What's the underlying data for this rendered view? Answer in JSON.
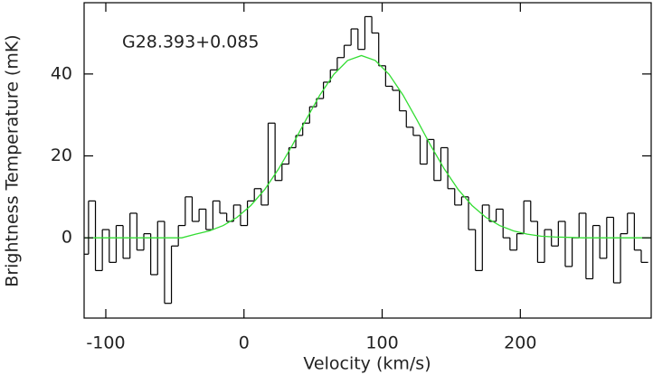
{
  "chart_data": {
    "type": "step",
    "annotation": "G28.393+0.085",
    "x_label": "Velocity (km/s)",
    "y_label": "Brightness Temperature (mK)",
    "xlim": [
      -115.7,
      294.7
    ],
    "ylim": [
      -19.6,
      57.4
    ],
    "xticks": [
      -100,
      0,
      100,
      200
    ],
    "yticks": [
      0,
      20,
      40
    ],
    "series": [
      {
        "color": "#000000",
        "x": [
          -115,
          -110,
          -105,
          -100,
          -95,
          -90,
          -85,
          -80,
          -75,
          -70,
          -65,
          -60,
          -55,
          -50,
          -45,
          -40,
          -35,
          -30,
          -25,
          -20,
          -15,
          -10,
          -5,
          0,
          5,
          10,
          15,
          20,
          25,
          30,
          35,
          40,
          45,
          50,
          55,
          60,
          65,
          70,
          75,
          80,
          85,
          90,
          95,
          100,
          105,
          110,
          115,
          120,
          125,
          130,
          135,
          140,
          145,
          150,
          155,
          160,
          165,
          170,
          175,
          180,
          185,
          190,
          195,
          200,
          205,
          210,
          215,
          220,
          225,
          230,
          235,
          240,
          245,
          250,
          255,
          260,
          265,
          270,
          275,
          280,
          285,
          290
        ],
        "values": [
          -4,
          9,
          -8,
          2,
          -6,
          3,
          -5,
          6,
          -3,
          1,
          -9,
          4,
          -16,
          -2,
          3,
          10,
          4,
          7,
          2,
          9,
          6,
          4,
          8,
          3,
          9,
          12,
          8,
          28,
          14,
          18,
          22,
          25,
          28,
          32,
          34,
          38,
          41,
          44,
          47,
          51,
          46,
          54,
          50,
          42,
          37,
          36,
          31,
          27,
          25,
          18,
          24,
          14,
          22,
          12,
          8,
          10,
          2,
          -8,
          8,
          4,
          7,
          0,
          -3,
          1,
          9,
          4,
          -6,
          2,
          -2,
          4,
          -7,
          0,
          6,
          -10,
          3,
          -5,
          5,
          -11,
          1,
          6,
          -3,
          -6
        ]
      },
      {
        "color": "#33dd33",
        "x": [
          -115,
          -105,
          -95,
          -85,
          -75,
          -65,
          -55,
          -45,
          -35,
          -25,
          -15,
          -5,
          5,
          15,
          25,
          35,
          45,
          55,
          65,
          75,
          85,
          95,
          105,
          115,
          125,
          135,
          145,
          155,
          165,
          175,
          185,
          195,
          205,
          215,
          225,
          235,
          245,
          255,
          265,
          275,
          285,
          295
        ],
        "values": [
          0,
          0,
          0,
          0,
          0,
          0,
          0,
          0,
          0.9,
          1.7,
          3.0,
          5.0,
          7.9,
          11.8,
          16.8,
          22.6,
          28.9,
          34.9,
          39.9,
          43.3,
          44.5,
          43.3,
          39.9,
          34.9,
          28.9,
          22.6,
          16.8,
          11.8,
          7.9,
          5.0,
          3.0,
          1.7,
          0.9,
          0.4,
          0.2,
          0.1,
          0,
          0,
          0,
          0,
          0,
          0
        ]
      }
    ]
  }
}
